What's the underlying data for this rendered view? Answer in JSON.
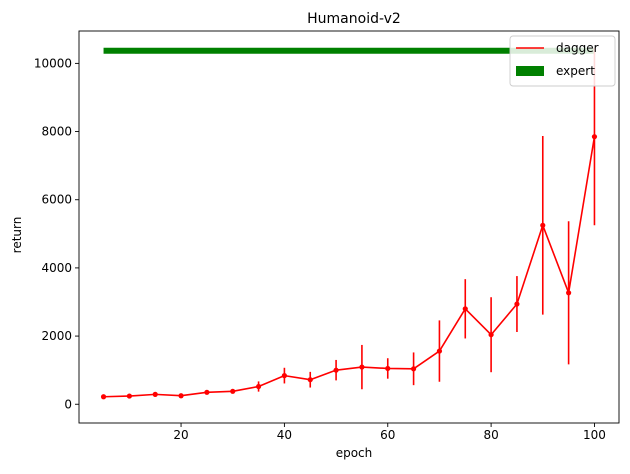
{
  "chart_data": {
    "type": "line",
    "title": "Humanoid-v2",
    "xlabel": "epoch",
    "ylabel": "return",
    "xlim": [
      0.25,
      104.75
    ],
    "ylim": [
      -550,
      10950
    ],
    "xticks": [
      20,
      40,
      60,
      80,
      100
    ],
    "yticks": [
      0,
      2000,
      4000,
      6000,
      8000,
      10000
    ],
    "xtick_labels": [
      "20",
      "40",
      "60",
      "80",
      "100"
    ],
    "ytick_labels": [
      "0",
      "2000",
      "4000",
      "6000",
      "8000",
      "10000"
    ],
    "grid": false,
    "legend_position": "upper right",
    "series": [
      {
        "name": "dagger",
        "color": "#ff0000",
        "x": [
          5,
          10,
          15,
          20,
          25,
          30,
          35,
          40,
          45,
          50,
          55,
          60,
          65,
          70,
          75,
          80,
          85,
          90,
          95,
          100
        ],
        "y": [
          220,
          240,
          290,
          250,
          350,
          380,
          520,
          840,
          720,
          1000,
          1090,
          1050,
          1040,
          1560,
          2800,
          2040,
          2940,
          5250,
          3270,
          7850
        ],
        "err": [
          20,
          20,
          30,
          30,
          40,
          60,
          150,
          230,
          230,
          300,
          650,
          300,
          480,
          900,
          870,
          1100,
          820,
          2620,
          2100,
          2600
        ]
      },
      {
        "name": "expert",
        "color": "#008000",
        "x": [
          5,
          100
        ],
        "y": [
          10370,
          10370
        ]
      }
    ]
  }
}
